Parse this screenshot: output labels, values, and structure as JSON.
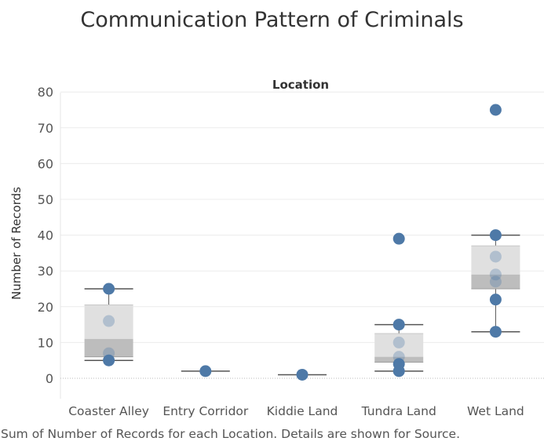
{
  "chart_data": {
    "type": "boxplot",
    "title": "Communication Pattern of Criminals",
    "column_header": "Location",
    "ylabel": "Number of Records",
    "ylim": [
      -5,
      82
    ],
    "yticks": [
      0,
      10,
      20,
      30,
      40,
      50,
      60,
      70,
      80
    ],
    "grid": true,
    "categories": [
      "Coaster Alley",
      "Entry Corridor",
      "Kiddie Land",
      "Tundra Land",
      "Wet Land"
    ],
    "series": [
      {
        "category": "Coaster Alley",
        "points": [
          25,
          16,
          7,
          5
        ],
        "whisker_low": 5,
        "q1": 6,
        "median": 11,
        "q3": 20.5,
        "whisker_high": 25
      },
      {
        "category": "Entry Corridor",
        "points": [
          2
        ],
        "whisker_low": 2,
        "q1": 2,
        "median": 2,
        "q3": 2,
        "whisker_high": 2
      },
      {
        "category": "Kiddie Land",
        "points": [
          1
        ],
        "whisker_low": 1,
        "q1": 1,
        "median": 1,
        "q3": 1,
        "whisker_high": 1
      },
      {
        "category": "Tundra Land",
        "points": [
          39,
          15,
          10,
          6,
          4,
          2
        ],
        "whisker_low": 2,
        "q1": 4.5,
        "median": 6,
        "q3": 12.5,
        "whisker_high": 15
      },
      {
        "category": "Wet Land",
        "points": [
          75,
          40,
          34,
          29,
          27,
          22,
          13
        ],
        "whisker_low": 13,
        "q1": 25,
        "median": 29,
        "q3": 37,
        "whisker_high": 40
      }
    ],
    "colors": {
      "point": "#4e79a7",
      "box_upper": "#e0e0e0",
      "box_lower": "#bdbdbd",
      "whisker": "#555555",
      "gridline": "#ececec"
    }
  },
  "caption": "Sum of Number of Records for each Location.  Details are shown for Source."
}
